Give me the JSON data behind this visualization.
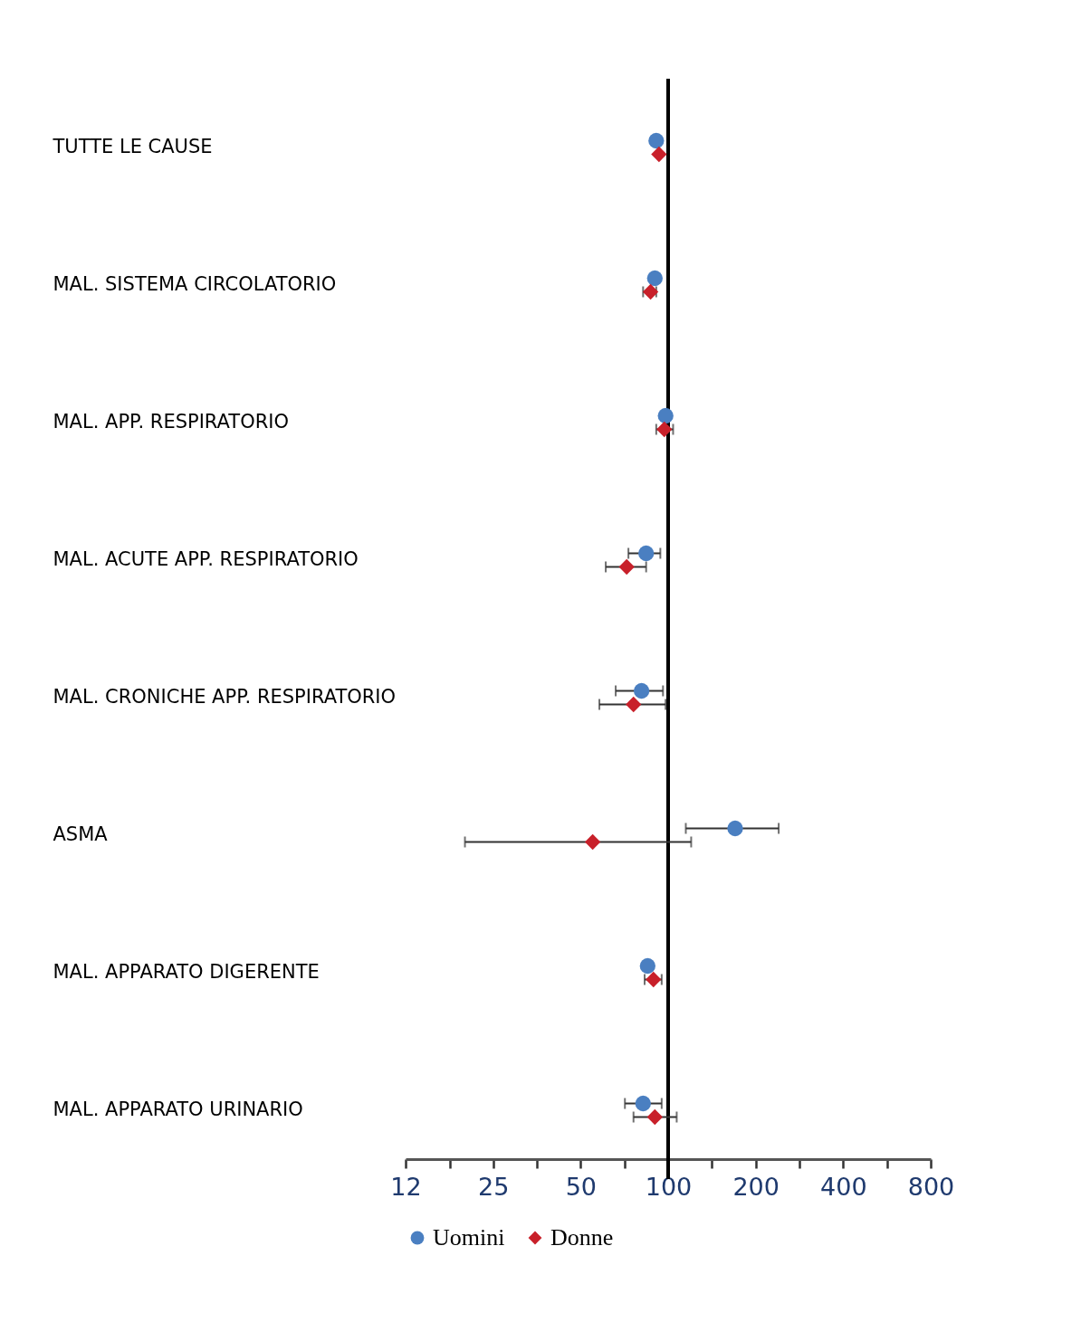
{
  "chart_data": {
    "type": "scatter",
    "orientation": "horizontal",
    "log": "x",
    "categories": [
      "TUTTE LE CAUSE",
      "MAL. SISTEMA CIRCOLATORIO",
      "MAL. APP. RESPIRATORIO",
      "MAL. ACUTE APP. RESPIRATORIO",
      "MAL. CRONICHE APP. RESPIRATORIO",
      "ASMA",
      "MAL. APPARATO DIGERENTE",
      "MAL. APPARATO URINARIO"
    ],
    "series": [
      {
        "name": "Uomini",
        "color": "#4a7fc1",
        "marker": "circle",
        "values": [
          91,
          90,
          98,
          84,
          81,
          170,
          85,
          82
        ],
        "errors": [
          null,
          null,
          null,
          [
            73,
            94
          ],
          [
            66,
            96
          ],
          [
            115,
            240
          ],
          null,
          [
            71,
            95
          ]
        ]
      },
      {
        "name": "Donne",
        "color": "#c8202a",
        "marker": "diamond",
        "values": [
          93,
          87,
          97,
          72,
          76,
          55,
          89,
          90
        ],
        "errors": [
          null,
          [
            82,
            91
          ],
          [
            91,
            104
          ],
          [
            61,
            84
          ],
          [
            58,
            98
          ],
          [
            20,
            120
          ],
          [
            83,
            95
          ],
          [
            76,
            107
          ]
        ]
      }
    ],
    "xlim": [
      12.5,
      800
    ],
    "xticks": [
      {
        "value": 12.5,
        "label": "12"
      },
      {
        "value": 17.7,
        "label": null
      },
      25,
      {
        "value": 35.4,
        "label": null
      },
      50,
      {
        "value": 70.7,
        "label": null
      },
      100,
      {
        "value": 141.4,
        "label": null
      },
      200,
      {
        "value": 282.8,
        "label": null
      },
      400,
      {
        "value": 565.7,
        "label": null
      },
      800
    ],
    "ref_lines": [
      {
        "axis": "x",
        "value": 100,
        "color": "#000000"
      }
    ],
    "legend": "bottom",
    "grid": false
  }
}
